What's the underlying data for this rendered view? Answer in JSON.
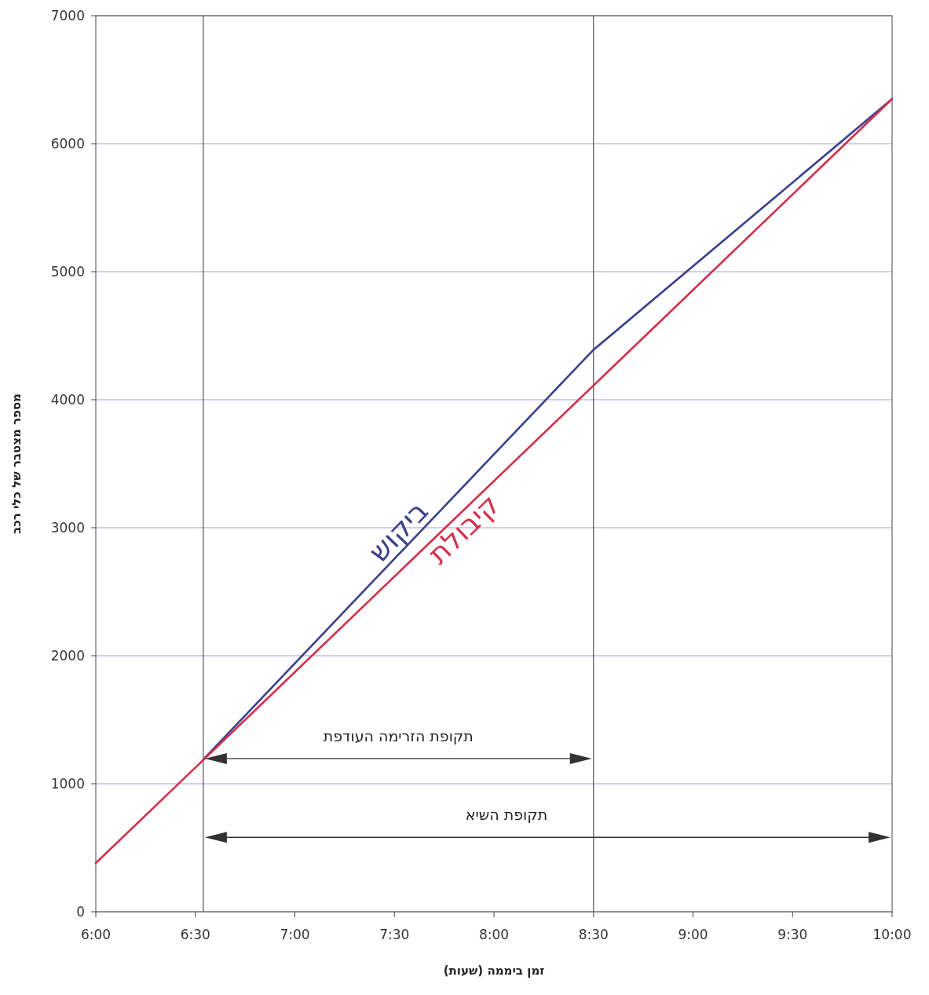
{
  "chart_data": {
    "type": "line",
    "xlabel": "זמן ביממה (שעות)",
    "ylabel": "מספר מצטבר של כלי רכב",
    "xlim": [
      6,
      10
    ],
    "ylim": [
      0,
      7000
    ],
    "xticks": [
      {
        "value": 6,
        "label": "6:00"
      },
      {
        "value": 6.5,
        "label": "6:30"
      },
      {
        "value": 7,
        "label": "7:00"
      },
      {
        "value": 7.5,
        "label": "7:30"
      },
      {
        "value": 8,
        "label": "8:00"
      },
      {
        "value": 8.5,
        "label": "8:30"
      },
      {
        "value": 9,
        "label": "9:00"
      },
      {
        "value": 9.5,
        "label": "9:30"
      },
      {
        "value": 10,
        "label": "10:00"
      }
    ],
    "yticks": [
      0,
      1000,
      2000,
      3000,
      4000,
      5000,
      6000,
      7000
    ],
    "grid": "y",
    "marker": "none",
    "line_style": "solid",
    "series": [
      {
        "name": "ביקוש",
        "color": "#3b3f8c",
        "x": [
          6.54,
          8.5,
          10
        ],
        "values": [
          1190,
          4390,
          6350
        ]
      },
      {
        "name": "קיבולת",
        "color": "#d3304c",
        "x": [
          6,
          10
        ],
        "values": [
          380,
          6350
        ]
      }
    ],
    "ref_lines": [
      {
        "axis": "x",
        "value": 6.54,
        "color": "#555555"
      },
      {
        "axis": "x",
        "value": 8.5,
        "color": "#555555"
      }
    ],
    "annotations": [
      "תקופת הזרימה העודפת",
      "תקופת השיא"
    ]
  }
}
